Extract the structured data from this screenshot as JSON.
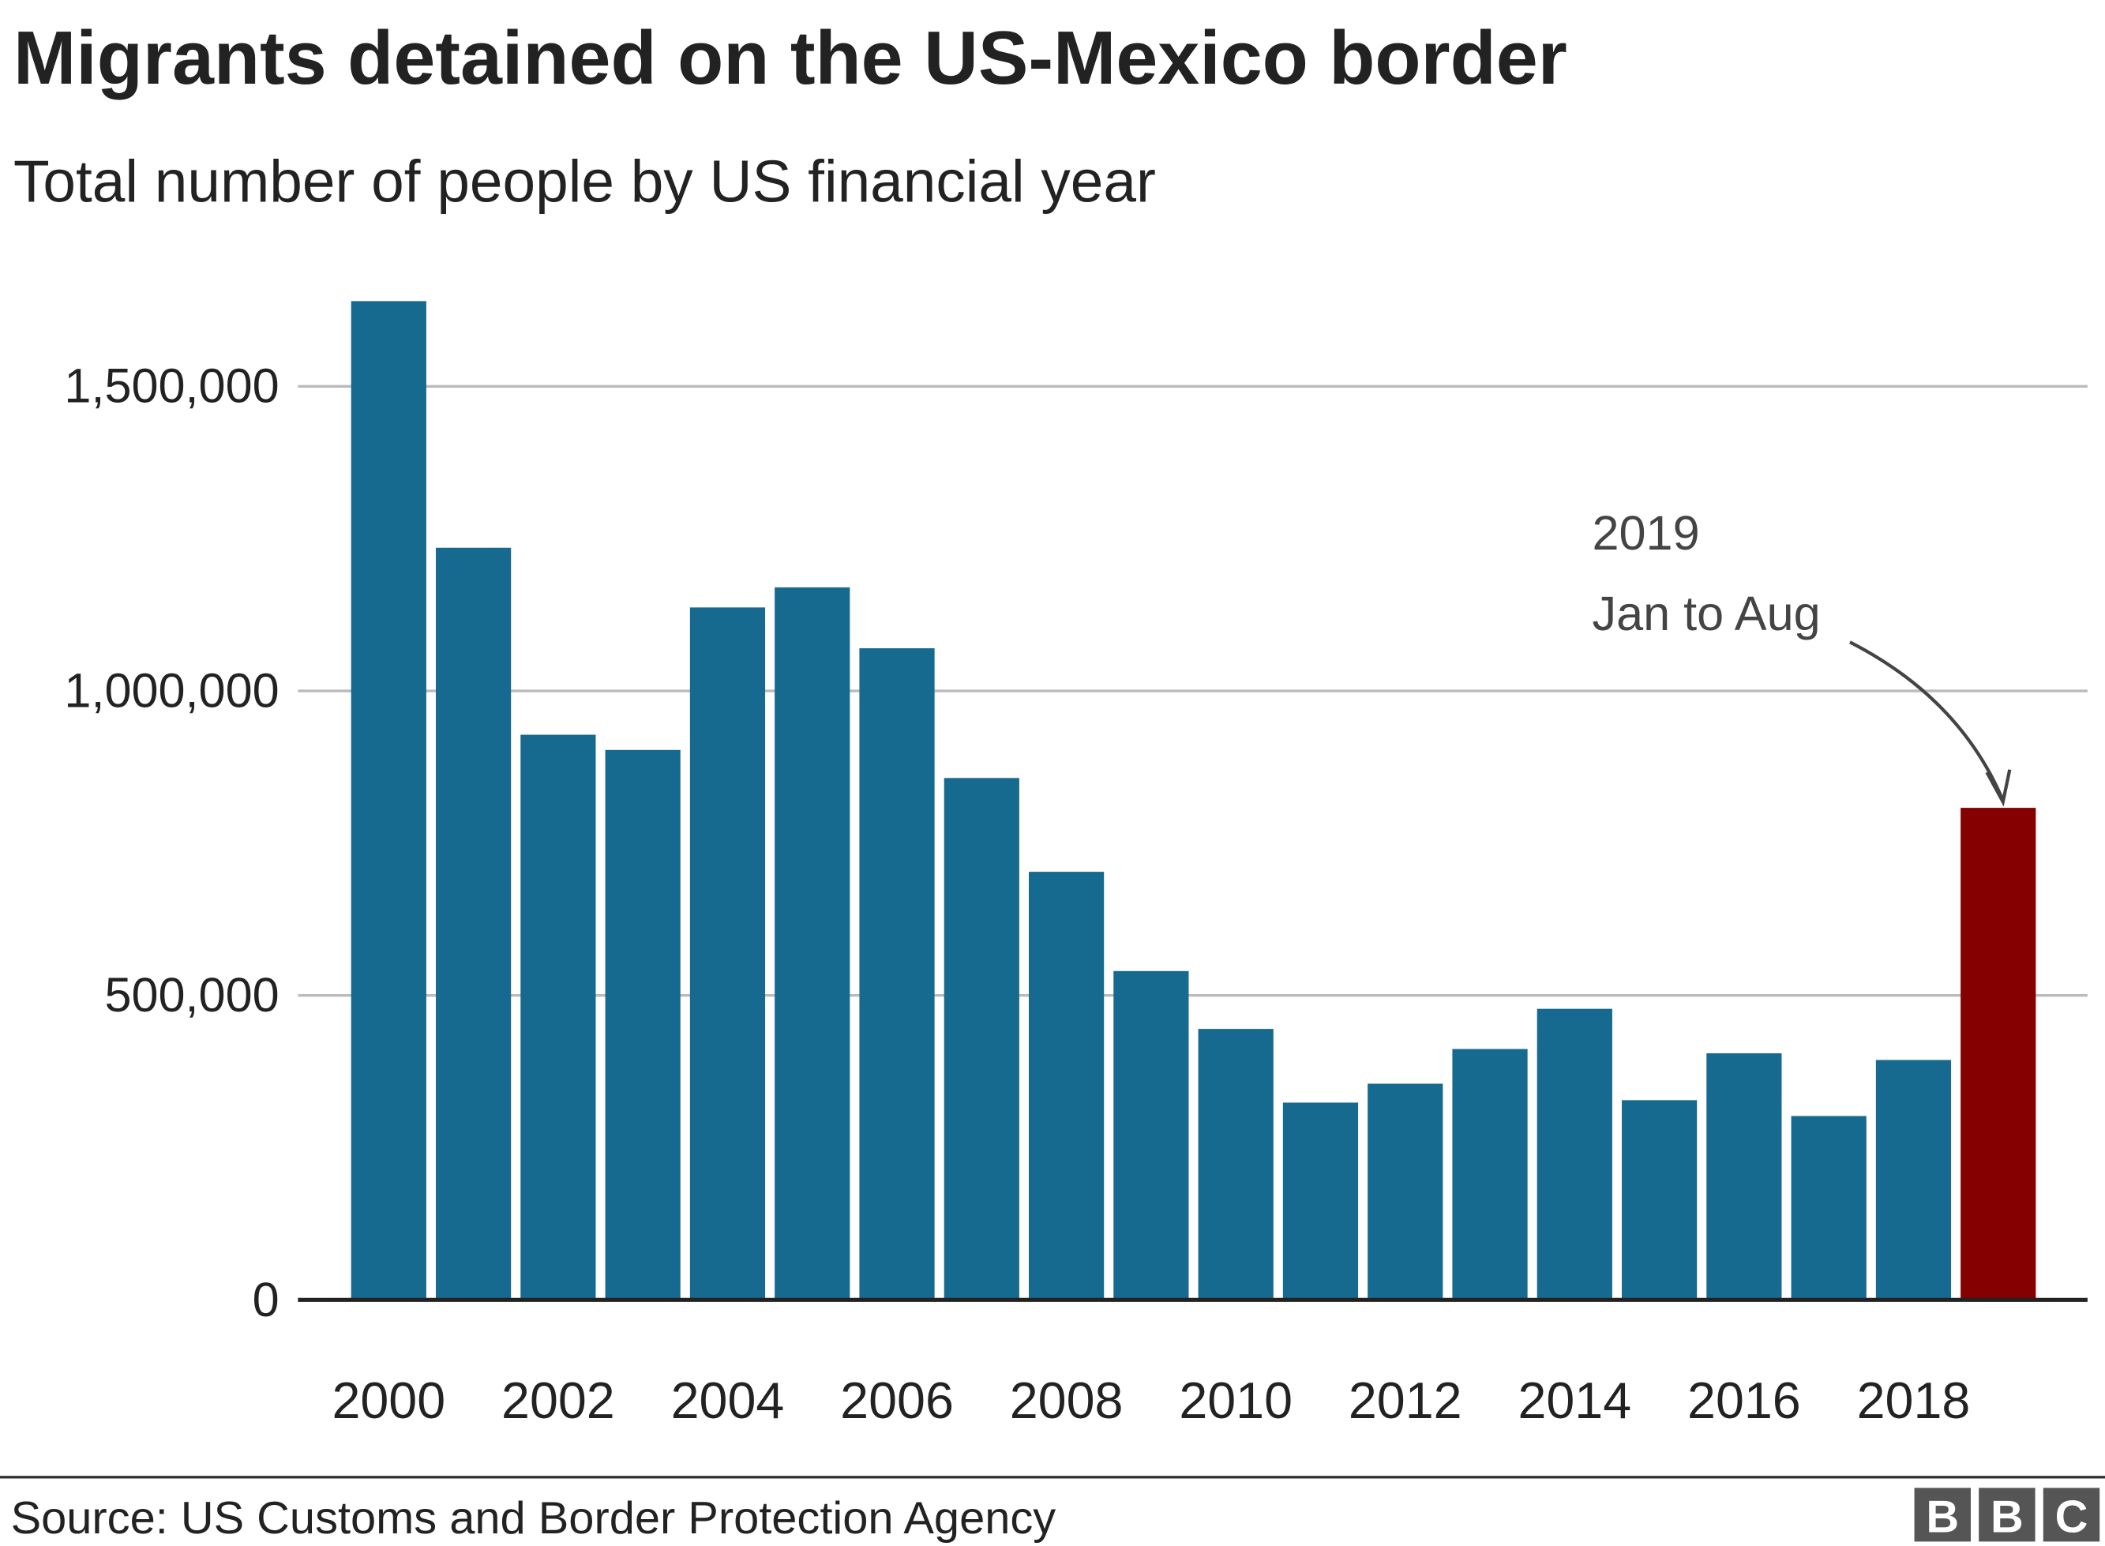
{
  "chart_data": {
    "type": "bar",
    "title": "Migrants detained on the US-Mexico border",
    "subtitle": "Total number of people by US financial year",
    "categories": [
      "2000",
      null,
      "2002",
      null,
      "2004",
      null,
      "2006",
      null,
      "2008",
      null,
      "2010",
      null,
      "2012",
      null,
      "2014",
      null,
      "2016",
      null,
      "2018",
      null
    ],
    "values": [
      1640000,
      1235000,
      928000,
      903000,
      1137000,
      1170000,
      1070000,
      857000,
      703000,
      540000,
      445000,
      324000,
      355000,
      412000,
      478000,
      328000,
      405000,
      302000,
      394000,
      808000
    ],
    "colors": [
      "#176a8f",
      "#176a8f",
      "#176a8f",
      "#176a8f",
      "#176a8f",
      "#176a8f",
      "#176a8f",
      "#176a8f",
      "#176a8f",
      "#176a8f",
      "#176a8f",
      "#176a8f",
      "#176a8f",
      "#176a8f",
      "#176a8f",
      "#176a8f",
      "#176a8f",
      "#176a8f",
      "#176a8f",
      "#850000"
    ],
    "ylim": [
      0,
      1640000
    ],
    "yticks": [
      0,
      {
        "value": 500000,
        "label": "500,000"
      },
      {
        "value": 1000000,
        "label": "1,000,000"
      },
      {
        "value": 1500000,
        "label": "1,500,000"
      }
    ],
    "grid": true,
    "annotation": [
      "2019",
      "Jan to Aug"
    ],
    "source": "Source: US Customs and Border Protection Agency",
    "logo": [
      "B",
      "B",
      "C"
    ]
  }
}
